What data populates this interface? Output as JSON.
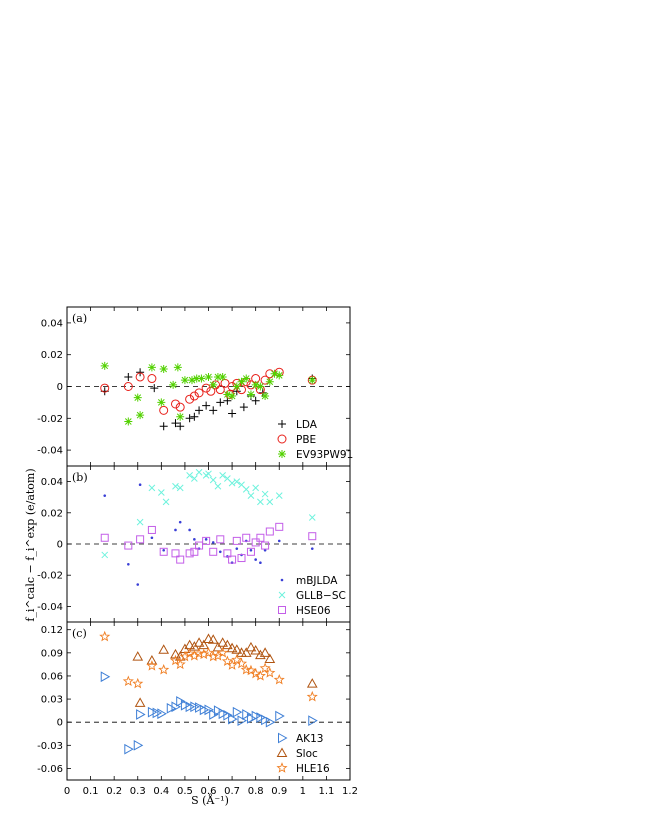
{
  "chart_data": {
    "type": "scatter",
    "xlabel": "S (Å⁻¹)",
    "ylabel": "f_i^calc − f_i^exp (e/atom)",
    "xlim": [
      0,
      1.2
    ],
    "xticks": [
      "0",
      "0.1",
      "0.2",
      "0.3",
      "0.4",
      "0.5",
      "0.6",
      "0.7",
      "0.8",
      "0.9",
      "1",
      "1.1",
      "1.2"
    ],
    "grid": false,
    "panels": [
      {
        "label": "(a)",
        "ylim": [
          -0.05,
          0.05
        ],
        "yticks": [
          "-0.04",
          "-0.02",
          "0",
          "0.02",
          "0.04"
        ],
        "legend_position": "bottom-right",
        "series": [
          {
            "name": "LDA",
            "marker": "plus",
            "color": "#000000",
            "x": [
              0.16,
              0.26,
              0.31,
              0.37,
              0.41,
              0.46,
              0.48,
              0.52,
              0.54,
              0.56,
              0.59,
              0.62,
              0.65,
              0.68,
              0.7,
              0.72,
              0.75,
              0.78,
              0.8,
              0.83,
              1.04
            ],
            "y": [
              -0.003,
              0.006,
              0.009,
              -0.001,
              -0.025,
              -0.023,
              -0.025,
              -0.02,
              -0.019,
              -0.015,
              -0.012,
              -0.015,
              -0.01,
              -0.009,
              -0.017,
              -0.003,
              -0.013,
              -0.006,
              -0.009,
              -0.004,
              0.005
            ]
          },
          {
            "name": "PBE",
            "marker": "circle",
            "color": "#e8201a",
            "x": [
              0.16,
              0.26,
              0.31,
              0.36,
              0.41,
              0.46,
              0.48,
              0.52,
              0.54,
              0.56,
              0.59,
              0.61,
              0.63,
              0.65,
              0.67,
              0.69,
              0.7,
              0.72,
              0.74,
              0.76,
              0.78,
              0.8,
              0.82,
              0.84,
              0.86,
              0.9,
              1.04
            ],
            "y": [
              -0.001,
              0.0,
              0.006,
              0.005,
              -0.015,
              -0.011,
              -0.013,
              -0.008,
              -0.006,
              -0.004,
              -0.001,
              -0.003,
              0.001,
              -0.002,
              0.002,
              -0.005,
              0.0,
              0.002,
              -0.002,
              0.003,
              0.001,
              0.005,
              -0.002,
              0.004,
              0.008,
              0.009,
              0.004
            ]
          },
          {
            "name": "EV93PW91",
            "marker": "asterisk",
            "color": "#52d100",
            "x": [
              0.16,
              0.26,
              0.3,
              0.31,
              0.36,
              0.4,
              0.41,
              0.45,
              0.47,
              0.48,
              0.5,
              0.53,
              0.55,
              0.57,
              0.6,
              0.62,
              0.64,
              0.66,
              0.68,
              0.7,
              0.72,
              0.74,
              0.76,
              0.78,
              0.8,
              0.82,
              0.84,
              0.86,
              0.88,
              0.9,
              1.04
            ],
            "y": [
              0.013,
              -0.022,
              -0.007,
              -0.018,
              0.012,
              -0.01,
              0.011,
              0.001,
              0.012,
              -0.019,
              0.004,
              0.004,
              0.005,
              0.005,
              0.006,
              0.001,
              0.006,
              0.006,
              -0.005,
              -0.006,
              0.0,
              0.003,
              0.005,
              -0.005,
              0.001,
              0.0,
              -0.006,
              0.003,
              0.008,
              0.007,
              0.004
            ]
          }
        ]
      },
      {
        "label": "(b)",
        "ylim": [
          -0.05,
          0.05
        ],
        "yticks": [
          "-0.04",
          "-0.02",
          "0",
          "0.02",
          "0.04"
        ],
        "legend_position": "bottom-right",
        "series": [
          {
            "name": "mBJLDA",
            "marker": "dot",
            "color": "#3a3fd6",
            "x": [
              0.16,
              0.26,
              0.3,
              0.31,
              0.36,
              0.41,
              0.46,
              0.48,
              0.52,
              0.54,
              0.56,
              0.59,
              0.62,
              0.65,
              0.68,
              0.7,
              0.72,
              0.74,
              0.76,
              0.78,
              0.8,
              0.82,
              0.84,
              0.9,
              1.04
            ],
            "y": [
              0.031,
              -0.013,
              -0.026,
              0.038,
              0.004,
              -0.004,
              0.009,
              0.014,
              0.009,
              0.003,
              -0.003,
              0.003,
              0.001,
              -0.005,
              -0.008,
              -0.012,
              -0.003,
              -0.007,
              0.002,
              -0.004,
              -0.01,
              -0.012,
              -0.004,
              0.002,
              -0.003
            ]
          },
          {
            "name": "GLLB−SC",
            "marker": "cross",
            "color": "#6ef2dd",
            "x": [
              0.16,
              0.31,
              0.36,
              0.4,
              0.42,
              0.46,
              0.48,
              0.52,
              0.54,
              0.56,
              0.59,
              0.6,
              0.62,
              0.64,
              0.66,
              0.68,
              0.7,
              0.72,
              0.74,
              0.76,
              0.78,
              0.8,
              0.82,
              0.84,
              0.86,
              0.9,
              1.04
            ],
            "y": [
              -0.007,
              0.014,
              0.036,
              0.033,
              0.027,
              0.037,
              0.036,
              0.044,
              0.042,
              0.046,
              0.044,
              0.045,
              0.041,
              0.037,
              0.044,
              0.042,
              0.039,
              0.04,
              0.038,
              0.035,
              0.031,
              0.036,
              0.027,
              0.032,
              0.027,
              0.031,
              0.017
            ]
          },
          {
            "name": "HSE06",
            "marker": "square",
            "color": "#c35ee8",
            "x": [
              0.16,
              0.26,
              0.31,
              0.36,
              0.41,
              0.46,
              0.48,
              0.52,
              0.54,
              0.56,
              0.59,
              0.62,
              0.65,
              0.68,
              0.7,
              0.72,
              0.74,
              0.76,
              0.78,
              0.8,
              0.82,
              0.84,
              0.86,
              0.9,
              1.04
            ],
            "y": [
              0.004,
              -0.001,
              0.003,
              0.009,
              -0.005,
              -0.006,
              -0.01,
              -0.006,
              -0.005,
              -0.001,
              0.002,
              -0.005,
              0.003,
              -0.006,
              -0.01,
              0.002,
              -0.009,
              0.004,
              -0.005,
              0.001,
              0.004,
              -0.001,
              0.008,
              0.011,
              0.005
            ]
          }
        ]
      },
      {
        "label": "(c)",
        "ylim": [
          -0.075,
          0.13
        ],
        "yticks": [
          "-0.06",
          "-0.03",
          "0",
          "0.03",
          "0.06",
          "0.09",
          "0.12"
        ],
        "legend_position": "bottom-right",
        "series": [
          {
            "name": "AK13",
            "marker": "triangle-right",
            "color": "#3e7fd6",
            "x": [
              0.16,
              0.26,
              0.3,
              0.31,
              0.36,
              0.38,
              0.4,
              0.44,
              0.46,
              0.48,
              0.5,
              0.52,
              0.54,
              0.56,
              0.58,
              0.6,
              0.62,
              0.64,
              0.66,
              0.68,
              0.7,
              0.72,
              0.74,
              0.76,
              0.78,
              0.8,
              0.82,
              0.84,
              0.86,
              0.9,
              1.04
            ],
            "y": [
              0.059,
              -0.035,
              -0.03,
              0.01,
              0.013,
              0.012,
              0.011,
              0.018,
              0.02,
              0.027,
              0.022,
              0.02,
              0.02,
              0.019,
              0.016,
              0.016,
              0.01,
              0.015,
              0.011,
              0.009,
              0.004,
              0.013,
              0.002,
              0.01,
              0.005,
              0.008,
              0.006,
              0.003,
              0.0,
              0.008,
              0.002
            ]
          },
          {
            "name": "Sloc",
            "marker": "triangle-up",
            "color": "#b05410",
            "x": [
              0.31,
              0.3,
              0.36,
              0.41,
              0.46,
              0.48,
              0.5,
              0.52,
              0.54,
              0.56,
              0.58,
              0.6,
              0.62,
              0.64,
              0.66,
              0.68,
              0.7,
              0.72,
              0.74,
              0.76,
              0.78,
              0.8,
              0.82,
              0.84,
              0.86,
              1.04
            ],
            "y": [
              0.025,
              0.085,
              0.08,
              0.094,
              0.088,
              0.085,
              0.095,
              0.1,
              0.098,
              0.103,
              0.1,
              0.108,
              0.107,
              0.097,
              0.103,
              0.1,
              0.096,
              0.094,
              0.09,
              0.09,
              0.097,
              0.093,
              0.087,
              0.09,
              0.082,
              0.05
            ]
          },
          {
            "name": "HLE16",
            "marker": "star",
            "color": "#f07e22",
            "x": [
              0.16,
              0.26,
              0.3,
              0.36,
              0.41,
              0.46,
              0.48,
              0.5,
              0.52,
              0.54,
              0.56,
              0.58,
              0.6,
              0.62,
              0.64,
              0.66,
              0.68,
              0.7,
              0.72,
              0.74,
              0.76,
              0.78,
              0.8,
              0.82,
              0.84,
              0.86,
              0.9,
              1.04
            ],
            "y": [
              0.111,
              0.053,
              0.05,
              0.073,
              0.068,
              0.08,
              0.075,
              0.085,
              0.089,
              0.086,
              0.089,
              0.088,
              0.09,
              0.085,
              0.086,
              0.09,
              0.079,
              0.074,
              0.081,
              0.076,
              0.068,
              0.067,
              0.063,
              0.06,
              0.07,
              0.064,
              0.055,
              0.033
            ]
          }
        ]
      }
    ]
  }
}
